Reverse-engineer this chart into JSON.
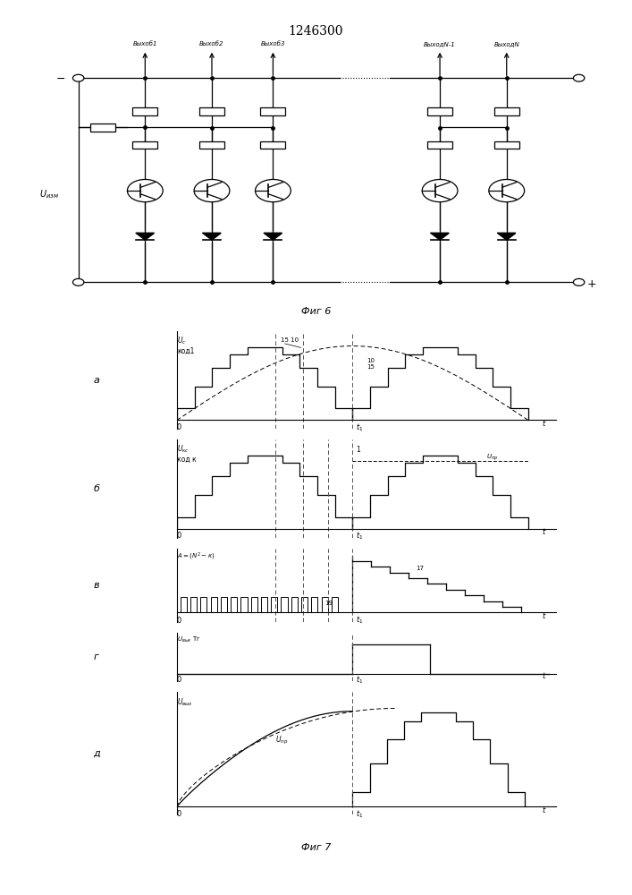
{
  "title": "1246300",
  "fig6_caption": "Фиг 6",
  "fig7_caption": "Фиг 7",
  "background_color": "#ffffff",
  "line_color": "#000000",
  "t1": 0.5,
  "n_steps_a": 10,
  "n_steps_b": 10,
  "n_steps_d": 10,
  "dashed_vlines_a": [
    0.28,
    0.36,
    0.5
  ],
  "dashed_vlines_b": [
    0.28,
    0.36,
    0.43,
    0.5
  ],
  "output_labels": [
    "Выхоб1",
    "Выхоб2",
    "Выхоб3",
    "ВыходN-1",
    "ВыходN"
  ],
  "u_izm_label": "$U_{изм}$"
}
